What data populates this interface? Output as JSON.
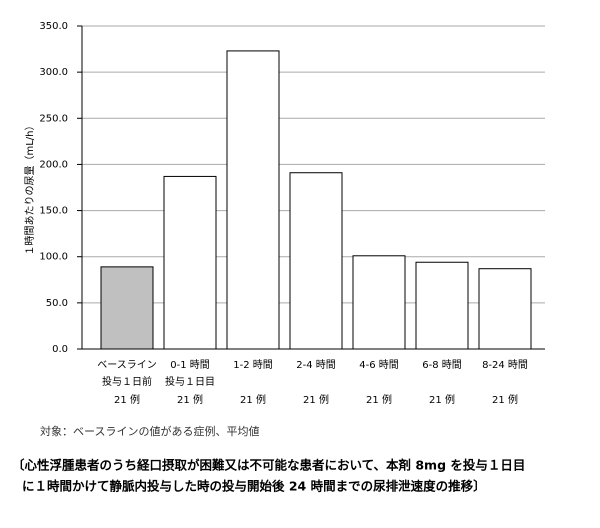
{
  "chart_data": {
    "type": "bar",
    "y_label": "１時間あたりの尿量（mL/h）",
    "categories": [
      [
        "ベースライン",
        "投与１日前"
      ],
      [
        "0-1 時間",
        "投与１日目"
      ],
      [
        "1-2 時間"
      ],
      [
        "2-4 時間"
      ],
      [
        "4-6 時間"
      ],
      [
        "6-8 時間"
      ],
      [
        "8-24 時間"
      ]
    ],
    "sample_sizes": [
      "21 例",
      "21 例",
      "21 例",
      "21 例",
      "21 例",
      "21 例",
      "21 例"
    ],
    "values": [
      89,
      187,
      323,
      191,
      101,
      94,
      87
    ],
    "colors": [
      "#c0c0c0",
      "#ffffff",
      "#ffffff",
      "#ffffff",
      "#ffffff",
      "#ffffff",
      "#ffffff"
    ],
    "ylim": [
      0,
      350
    ],
    "yticks": [
      {
        "value": 0,
        "label": "0.0"
      },
      {
        "value": 50,
        "label": "50.0"
      },
      {
        "value": 100,
        "label": "100.0"
      },
      {
        "value": 150,
        "label": "150.0"
      },
      {
        "value": 200,
        "label": "200.0"
      },
      {
        "value": 250,
        "label": "250.0"
      },
      {
        "value": 300,
        "label": "300.0"
      },
      {
        "value": 350,
        "label": "350.0"
      }
    ],
    "grid": true,
    "note": "対象：ベースラインの値がある症例、平均値",
    "caption": [
      "〔心性浮腫患者のうち経口摂取が困難又は不可能な患者において、本剤 8mg を投与１日目",
      "に１時間かけて静脈内投与した時の投与開始後 24 時間までの尿排泄速度の推移〕"
    ]
  }
}
